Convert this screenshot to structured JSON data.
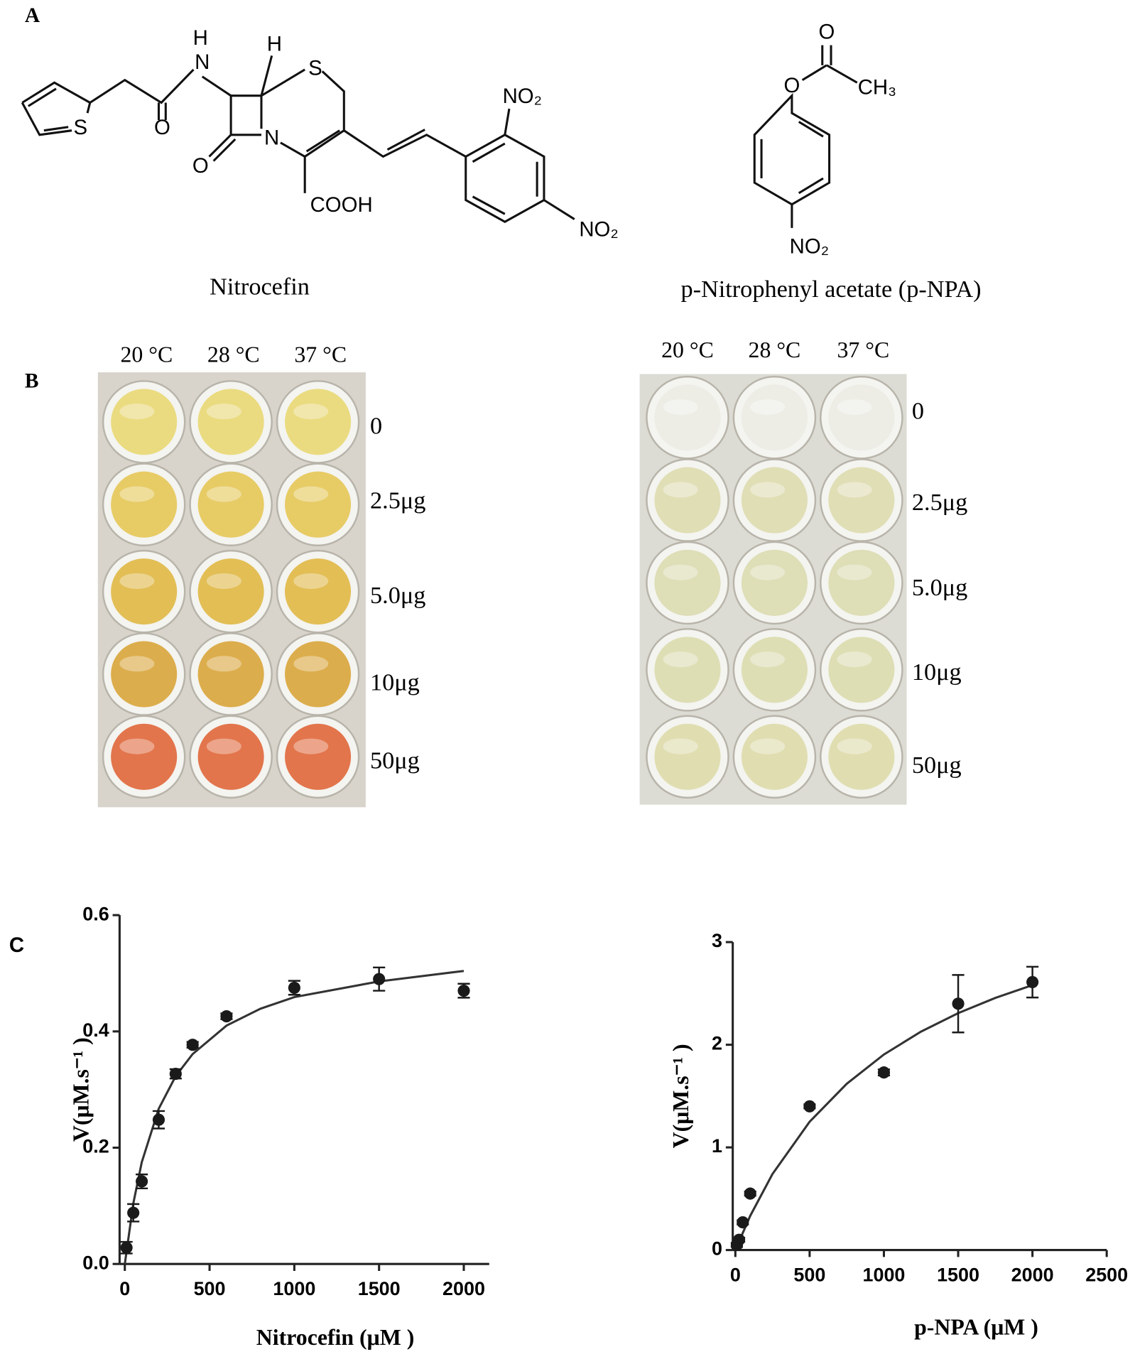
{
  "panels": {
    "a": "A",
    "b": "B",
    "c": "C"
  },
  "structures": [
    {
      "name": "Nitrocefin",
      "atoms": [
        "H",
        "N",
        "H",
        "S",
        "S",
        "O",
        "O",
        "N",
        "COOH",
        "NO₂",
        "NO₂"
      ]
    },
    {
      "name": "p-Nitrophenyl acetate (p-NPA)",
      "atoms": [
        "O",
        "O",
        "CH₃",
        "NO₂"
      ]
    }
  ],
  "plates": [
    {
      "temperatures": [
        "20 °C",
        "28 °C",
        "37 °C"
      ],
      "amounts": [
        "0",
        "2.5μg",
        "5.0μg",
        "10μg",
        "50μg"
      ],
      "background": "#d8d4cc",
      "well_colors": [
        "#e9d873",
        "#e6c655",
        "#e0b844",
        "#d9a53a",
        "#e0673a"
      ]
    },
    {
      "temperatures": [
        "20 °C",
        "28 °C",
        "37 °C"
      ],
      "amounts": [
        "0",
        "2.5μg",
        "5.0μg",
        "10μg",
        "50μg"
      ],
      "background": "#dcdcd4",
      "well_colors": [
        "#ececE4",
        "#dedcae",
        "#dcdcb0",
        "#dcdcae",
        "#dedcaa"
      ]
    }
  ],
  "chart_data": [
    {
      "type": "scatter",
      "x_label": "Nitrocefin (μM )",
      "y_label": "V(μM.s⁻¹ )",
      "x": [
        10,
        50,
        100,
        200,
        300,
        400,
        600,
        1000,
        1500,
        2000
      ],
      "series": [
        {
          "color": "#1a1a1a",
          "values": [
            0.028,
            0.088,
            0.142,
            0.248,
            0.327,
            0.377,
            0.426,
            0.475,
            0.49,
            0.47
          ],
          "errors": [
            0.01,
            0.015,
            0.012,
            0.015,
            0.008,
            0.005,
            0.005,
            0.012,
            0.02,
            0.012
          ]
        }
      ],
      "fit": {
        "color": "#333333",
        "x": [
          0,
          50,
          100,
          200,
          300,
          400,
          600,
          800,
          1000,
          1500,
          2000
        ],
        "y": [
          0,
          0.104,
          0.175,
          0.267,
          0.323,
          0.361,
          0.41,
          0.439,
          0.459,
          0.486,
          0.504
        ]
      },
      "xlim": [
        0,
        2150
      ],
      "ylim": [
        0,
        0.6
      ],
      "xticks": [
        0,
        500,
        1000,
        1500,
        2000
      ],
      "yticks": [
        {
          "value": 0,
          "label": "0.0"
        },
        0.2,
        0.4,
        0.6
      ]
    },
    {
      "type": "scatter",
      "x_label": "p-NPA (μM )",
      "y_label": "V(μM.s⁻¹ )",
      "x": [
        10,
        25,
        50,
        100,
        500,
        1000,
        1500,
        2000
      ],
      "series": [
        {
          "color": "#1a1a1a",
          "values": [
            0.05,
            0.1,
            0.27,
            0.55,
            1.4,
            1.73,
            2.4,
            2.61
          ],
          "errors": [
            0.02,
            0.02,
            0.02,
            0.02,
            0.02,
            0.03,
            0.28,
            0.15
          ]
        }
      ],
      "fit": {
        "color": "#333333",
        "x": [
          0,
          100,
          250,
          500,
          750,
          1000,
          1250,
          1500,
          1750,
          2000
        ],
        "y": [
          0,
          0.333,
          0.741,
          1.25,
          1.62,
          1.905,
          2.128,
          2.308,
          2.456,
          2.581
        ]
      },
      "xlim": [
        0,
        2500
      ],
      "ylim": [
        0,
        3
      ],
      "xticks": [
        0,
        500,
        1000,
        1500,
        2000,
        2500
      ],
      "yticks": [
        0,
        1,
        2,
        3
      ]
    }
  ]
}
